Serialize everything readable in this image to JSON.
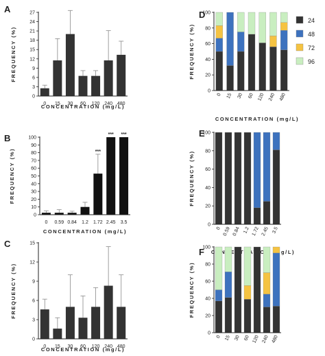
{
  "chart_data": [
    {
      "panel": "A",
      "type": "bar",
      "categories": [
        "0",
        "15",
        "30",
        "60",
        "120",
        "240",
        "480"
      ],
      "values": [
        2.5,
        11.5,
        20,
        6.5,
        6.5,
        11.5,
        13.3
      ],
      "errors": [
        1,
        7,
        7.6,
        1.7,
        1.7,
        9.6,
        4.4
      ],
      "xlabel": "CONCENTRATION (mg/L)",
      "ylabel": "FREQUENCY (%)",
      "ylim": [
        0,
        27
      ],
      "yticks": [
        "0",
        "3",
        "6",
        "9",
        "12",
        "15",
        "18",
        "21",
        "24",
        "27"
      ],
      "color": "#333333",
      "annotations": []
    },
    {
      "panel": "B",
      "type": "bar",
      "categories": [
        "0",
        "0.59",
        "0.84",
        "1.2",
        "1.72",
        "2.45",
        "3.5"
      ],
      "values": [
        2.5,
        2.5,
        2.5,
        10,
        53,
        100,
        100
      ],
      "errors": [
        2.5,
        4,
        2,
        6,
        25,
        0,
        0
      ],
      "xlabel": "CONCENTRATION (mg/L)",
      "ylabel": "FREQUENCY (%)",
      "ylim": [
        0,
        100
      ],
      "yticks": [
        "0",
        "10",
        "20",
        "30",
        "40",
        "50",
        "60",
        "70",
        "80",
        "90",
        "100"
      ],
      "color": "#111111",
      "annotations": [
        "",
        "",
        "",
        "",
        "***",
        "***",
        "***"
      ]
    },
    {
      "panel": "C",
      "type": "bar",
      "categories": [
        "0",
        "15",
        "30",
        "60",
        "120",
        "240",
        "480"
      ],
      "values": [
        4.6,
        1.6,
        5,
        3.3,
        5,
        8.3,
        5
      ],
      "errors": [
        1.6,
        1.7,
        5,
        3.4,
        3,
        6.1,
        5
      ],
      "xlabel": "CONCENTRATION (mg/L)",
      "ylabel": "FREQUENCY (%)",
      "ylim": [
        0,
        15
      ],
      "yticks": [
        "0",
        "3",
        "6",
        "9",
        "12",
        "15"
      ],
      "color": "#333333",
      "annotations": []
    },
    {
      "panel": "D",
      "type": "bar",
      "stacked": true,
      "categories": [
        "0",
        "15",
        "30",
        "60",
        "120",
        "240",
        "480"
      ],
      "series": [
        {
          "name": "24",
          "color": "#333333",
          "values": [
            50,
            32,
            50,
            72,
            61,
            56,
            52
          ]
        },
        {
          "name": "48",
          "color": "#3d72be",
          "values": [
            17,
            68,
            25,
            0,
            0,
            0,
            25
          ]
        },
        {
          "name": "72",
          "color": "#f5c342",
          "values": [
            16,
            0,
            0,
            0,
            0,
            14,
            10
          ]
        },
        {
          "name": "96",
          "color": "#c9eec0",
          "values": [
            17,
            0,
            25,
            28,
            39,
            30,
            13
          ]
        }
      ],
      "xlabel": "CONCENTRATION (mg/L)",
      "ylabel": "FREQUENCY (%)",
      "ylim": [
        0,
        100
      ],
      "yticks": [
        "0",
        "20",
        "40",
        "60",
        "80",
        "100"
      ],
      "legend": "right"
    },
    {
      "panel": "E",
      "type": "bar",
      "stacked": true,
      "categories": [
        "0",
        "0.59",
        "0.84",
        "1.2",
        "1.72",
        "2.45",
        "3.5"
      ],
      "series": [
        {
          "name": "24",
          "color": "#333333",
          "values": [
            100,
            100,
            100,
            100,
            18,
            25,
            81
          ]
        },
        {
          "name": "48",
          "color": "#3d72be",
          "values": [
            0,
            0,
            0,
            0,
            82,
            75,
            19
          ]
        },
        {
          "name": "72",
          "color": "#f5c342",
          "values": [
            0,
            0,
            0,
            0,
            0,
            0,
            0
          ]
        },
        {
          "name": "96",
          "color": "#c9eec0",
          "values": [
            0,
            0,
            0,
            0,
            0,
            0,
            0
          ]
        }
      ],
      "xlabel": "CONCENTRATION (mg/L)",
      "ylabel": "FREQUENCY (%)",
      "ylim": [
        0,
        100
      ],
      "yticks": [
        "0",
        "20",
        "40",
        "60",
        "80",
        "100"
      ]
    },
    {
      "panel": "F",
      "type": "bar",
      "stacked": true,
      "categories": [
        "0",
        "15",
        "30",
        "60",
        "120",
        "240",
        "480"
      ],
      "series": [
        {
          "name": "24",
          "color": "#333333",
          "values": [
            37,
            41,
            100,
            39,
            100,
            30,
            31
          ]
        },
        {
          "name": "48",
          "color": "#3d72be",
          "values": [
            13,
            30,
            0,
            0,
            0,
            15,
            62
          ]
        },
        {
          "name": "72",
          "color": "#f5c342",
          "values": [
            0,
            0,
            0,
            16,
            0,
            25,
            7
          ]
        },
        {
          "name": "96",
          "color": "#c9eec0",
          "values": [
            50,
            29,
            0,
            45,
            0,
            30,
            0
          ]
        }
      ],
      "xlabel": "CONCENTRATION (mg/L)",
      "ylabel": "FREQUENCY (%)",
      "ylim": [
        0,
        100
      ],
      "yticks": [
        "0",
        "20",
        "40",
        "60",
        "80",
        "100"
      ]
    }
  ]
}
